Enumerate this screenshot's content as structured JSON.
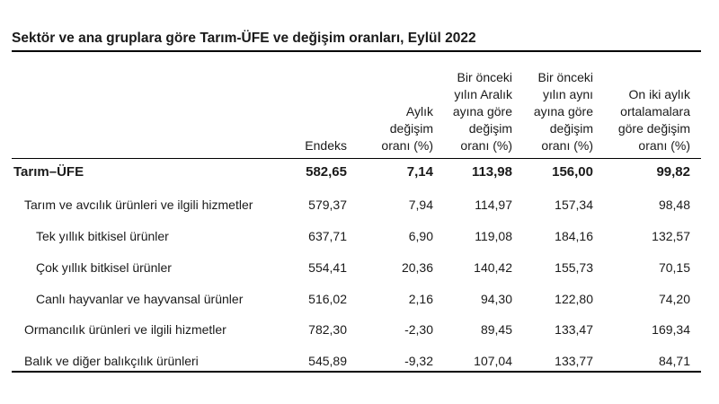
{
  "title": "Sektör ve ana gruplara göre Tarım-ÜFE ve değişim oranları, Eylül 2022",
  "columns": [
    {
      "lines": [
        "Endeks"
      ]
    },
    {
      "lines": [
        "Aylık",
        "değişim",
        "oranı (%)"
      ]
    },
    {
      "lines": [
        "Bir önceki",
        "yılın Aralık",
        "ayına göre",
        "değişim",
        "oranı (%)"
      ]
    },
    {
      "lines": [
        "Bir önceki",
        "yılın aynı",
        "ayına göre",
        "değişim",
        "oranı (%)"
      ]
    },
    {
      "lines": [
        "On iki aylık",
        "ortalamalara",
        "göre değişim",
        "oranı (%)"
      ]
    }
  ],
  "rows": [
    {
      "label": "Tarım–ÜFE",
      "values": [
        "582,65",
        "7,14",
        "113,98",
        "156,00",
        "99,82"
      ]
    },
    {
      "label": "Tarım ve avcılık ürünleri ve ilgili hizmetler",
      "values": [
        "579,37",
        "7,94",
        "114,97",
        "157,34",
        "98,48"
      ]
    },
    {
      "label": "Tek yıllık bitkisel ürünler",
      "values": [
        "637,71",
        "6,90",
        "119,08",
        "184,16",
        "132,57"
      ]
    },
    {
      "label": "Çok yıllık bitkisel ürünler",
      "values": [
        "554,41",
        "20,36",
        "140,42",
        "155,73",
        "70,15"
      ]
    },
    {
      "label": "Canlı hayvanlar ve hayvansal ürünler",
      "values": [
        "516,02",
        "2,16",
        "94,30",
        "122,80",
        "74,20"
      ]
    },
    {
      "label": "Ormancılık ürünleri ve ilgili hizmetler",
      "values": [
        "782,30",
        "-2,30",
        "89,45",
        "133,47",
        "169,34"
      ]
    },
    {
      "label": "Balık ve diğer balıkçılık ürünleri",
      "values": [
        "545,89",
        "-9,32",
        "107,04",
        "133,77",
        "84,71"
      ]
    }
  ]
}
